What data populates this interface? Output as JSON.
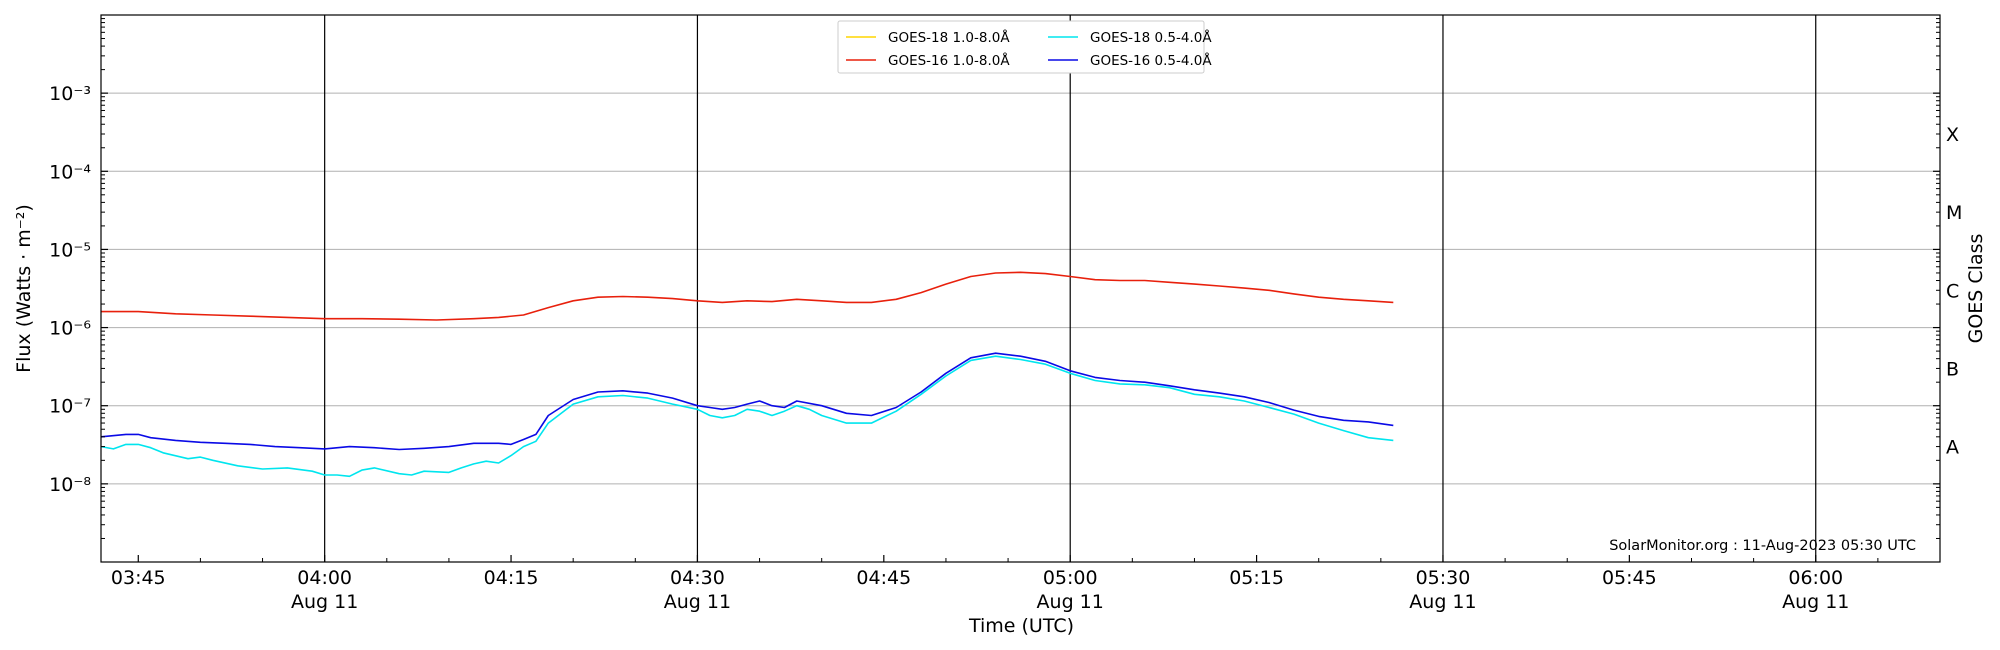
{
  "chart_data": {
    "type": "line",
    "ylabel": "Flux (Watts · m⁻²)",
    "y2label": "GOES Class",
    "xlabel": "Time (UTC)",
    "yscale": "log",
    "ylim": [
      1e-09,
      0.01
    ],
    "xlim": [
      "03:42",
      "06:10"
    ],
    "grid": "horizontal at decades",
    "legend_position": "top-center",
    "footer": "SolarMonitor.org : 11-Aug-2023 05:30 UTC",
    "y_ticks": [
      {
        "value": 1e-08,
        "label": "10⁻⁸"
      },
      {
        "value": 1e-07,
        "label": "10⁻⁷"
      },
      {
        "value": 1e-06,
        "label": "10⁻⁶"
      },
      {
        "value": 1e-05,
        "label": "10⁻⁵"
      },
      {
        "value": 0.0001,
        "label": "10⁻⁴"
      },
      {
        "value": 0.001,
        "label": "10⁻³"
      }
    ],
    "class_labels": [
      {
        "value": 3e-08,
        "label": "A"
      },
      {
        "value": 3e-07,
        "label": "B"
      },
      {
        "value": 3e-06,
        "label": "C"
      },
      {
        "value": 3e-05,
        "label": "M"
      },
      {
        "value": 0.0003,
        "label": "X"
      }
    ],
    "x_ticks": [
      {
        "time": "03:45",
        "label": "03:45",
        "sublabel": ""
      },
      {
        "time": "04:00",
        "label": "04:00",
        "sublabel": "Aug 11",
        "major": true
      },
      {
        "time": "04:15",
        "label": "04:15",
        "sublabel": ""
      },
      {
        "time": "04:30",
        "label": "04:30",
        "sublabel": "Aug 11",
        "major": true
      },
      {
        "time": "04:45",
        "label": "04:45",
        "sublabel": ""
      },
      {
        "time": "05:00",
        "label": "05:00",
        "sublabel": "Aug 11",
        "major": true
      },
      {
        "time": "05:15",
        "label": "05:15",
        "sublabel": ""
      },
      {
        "time": "05:30",
        "label": "05:30",
        "sublabel": "Aug 11",
        "major": true
      },
      {
        "time": "05:45",
        "label": "05:45",
        "sublabel": ""
      },
      {
        "time": "06:00",
        "label": "06:00",
        "sublabel": "Aug 11",
        "major": true
      }
    ],
    "series": [
      {
        "name": "GOES-18 1.0-8.0Å",
        "color": "#ffd500",
        "x": [],
        "y": []
      },
      {
        "name": "GOES-16 1.0-8.0Å",
        "color": "#e8200c",
        "x": [
          "03:42",
          "03:45",
          "03:48",
          "03:51",
          "03:54",
          "03:57",
          "04:00",
          "04:03",
          "04:06",
          "04:09",
          "04:12",
          "04:14",
          "04:16",
          "04:18",
          "04:20",
          "04:22",
          "04:24",
          "04:26",
          "04:28",
          "04:30",
          "04:32",
          "04:34",
          "04:36",
          "04:38",
          "04:40",
          "04:42",
          "04:44",
          "04:46",
          "04:48",
          "04:50",
          "04:52",
          "04:54",
          "04:56",
          "04:58",
          "05:00",
          "05:02",
          "05:04",
          "05:06",
          "05:08",
          "05:10",
          "05:12",
          "05:14",
          "05:16",
          "05:18",
          "05:20",
          "05:22",
          "05:24",
          "05:26"
        ],
        "y": [
          1.6e-06,
          1.6e-06,
          1.5e-06,
          1.45e-06,
          1.4e-06,
          1.35e-06,
          1.3e-06,
          1.3e-06,
          1.28e-06,
          1.25e-06,
          1.3e-06,
          1.35e-06,
          1.45e-06,
          1.8e-06,
          2.2e-06,
          2.45e-06,
          2.5e-06,
          2.45e-06,
          2.35e-06,
          2.2e-06,
          2.1e-06,
          2.2e-06,
          2.15e-06,
          2.3e-06,
          2.2e-06,
          2.1e-06,
          2.1e-06,
          2.3e-06,
          2.8e-06,
          3.6e-06,
          4.5e-06,
          5e-06,
          5.1e-06,
          4.9e-06,
          4.5e-06,
          4.1e-06,
          4e-06,
          4e-06,
          3.8e-06,
          3.6e-06,
          3.4e-06,
          3.2e-06,
          3e-06,
          2.7e-06,
          2.45e-06,
          2.3e-06,
          2.2e-06,
          2.1e-06
        ]
      },
      {
        "name": "GOES-18 0.5-4.0Å",
        "color": "#00e5ee",
        "x": [
          "03:42",
          "03:43",
          "03:44",
          "03:45",
          "03:46",
          "03:47",
          "03:49",
          "03:50",
          "03:51",
          "03:53",
          "03:55",
          "03:57",
          "03:59",
          "04:00",
          "04:01",
          "04:02",
          "04:03",
          "04:04",
          "04:06",
          "04:07",
          "04:08",
          "04:10",
          "04:11",
          "04:12",
          "04:13",
          "04:14",
          "04:15",
          "04:16",
          "04:17",
          "04:18",
          "04:20",
          "04:22",
          "04:24",
          "04:26",
          "04:28",
          "04:30",
          "04:31",
          "04:32",
          "04:33",
          "04:34",
          "04:35",
          "04:36",
          "04:37",
          "04:38",
          "04:39",
          "04:40",
          "04:42",
          "04:44",
          "04:46",
          "04:48",
          "04:50",
          "04:52",
          "04:54",
          "04:56",
          "04:58",
          "05:00",
          "05:02",
          "05:04",
          "05:06",
          "05:08",
          "05:10",
          "05:12",
          "05:14",
          "05:16",
          "05:18",
          "05:20",
          "05:22",
          "05:24",
          "05:26"
        ],
        "y": [
          3e-08,
          2.8e-08,
          3.2e-08,
          3.2e-08,
          2.9e-08,
          2.5e-08,
          2.1e-08,
          2.2e-08,
          2e-08,
          1.7e-08,
          1.55e-08,
          1.6e-08,
          1.45e-08,
          1.3e-08,
          1.3e-08,
          1.25e-08,
          1.5e-08,
          1.6e-08,
          1.35e-08,
          1.3e-08,
          1.45e-08,
          1.4e-08,
          1.6e-08,
          1.8e-08,
          1.95e-08,
          1.85e-08,
          2.3e-08,
          3e-08,
          3.5e-08,
          6e-08,
          1.05e-07,
          1.3e-07,
          1.35e-07,
          1.25e-07,
          1.05e-07,
          9e-08,
          7.5e-08,
          7e-08,
          7.5e-08,
          9e-08,
          8.5e-08,
          7.5e-08,
          8.5e-08,
          1e-07,
          9e-08,
          7.5e-08,
          6e-08,
          6e-08,
          8.5e-08,
          1.4e-07,
          2.4e-07,
          3.8e-07,
          4.3e-07,
          3.9e-07,
          3.4e-07,
          2.6e-07,
          2.1e-07,
          1.9e-07,
          1.85e-07,
          1.7e-07,
          1.4e-07,
          1.3e-07,
          1.15e-07,
          9.5e-08,
          7.8e-08,
          6e-08,
          4.8e-08,
          3.9e-08,
          3.6e-08
        ]
      },
      {
        "name": "GOES-16 0.5-4.0Å",
        "color": "#0a0ae6",
        "x": [
          "03:42",
          "03:44",
          "03:45",
          "03:46",
          "03:48",
          "03:50",
          "03:52",
          "03:54",
          "03:56",
          "03:58",
          "04:00",
          "04:02",
          "04:04",
          "04:06",
          "04:08",
          "04:10",
          "04:12",
          "04:14",
          "04:15",
          "04:16",
          "04:17",
          "04:18",
          "04:20",
          "04:22",
          "04:24",
          "04:26",
          "04:28",
          "04:30",
          "04:31",
          "04:32",
          "04:33",
          "04:34",
          "04:35",
          "04:36",
          "04:37",
          "04:38",
          "04:40",
          "04:42",
          "04:44",
          "04:46",
          "04:48",
          "04:50",
          "04:52",
          "04:54",
          "04:56",
          "04:58",
          "05:00",
          "05:02",
          "05:04",
          "05:06",
          "05:08",
          "05:10",
          "05:12",
          "05:14",
          "05:16",
          "05:18",
          "05:20",
          "05:22",
          "05:24",
          "05:26"
        ],
        "y": [
          4e-08,
          4.3e-08,
          4.3e-08,
          3.9e-08,
          3.6e-08,
          3.4e-08,
          3.3e-08,
          3.2e-08,
          3e-08,
          2.9e-08,
          2.8e-08,
          3e-08,
          2.9e-08,
          2.75e-08,
          2.85e-08,
          3e-08,
          3.3e-08,
          3.3e-08,
          3.2e-08,
          3.7e-08,
          4.3e-08,
          7.5e-08,
          1.2e-07,
          1.5e-07,
          1.55e-07,
          1.45e-07,
          1.25e-07,
          1e-07,
          9.5e-08,
          9e-08,
          9.5e-08,
          1.05e-07,
          1.15e-07,
          1e-07,
          9.5e-08,
          1.15e-07,
          1e-07,
          8e-08,
          7.5e-08,
          9.5e-08,
          1.5e-07,
          2.6e-07,
          4.1e-07,
          4.7e-07,
          4.3e-07,
          3.7e-07,
          2.8e-07,
          2.3e-07,
          2.1e-07,
          2e-07,
          1.8e-07,
          1.6e-07,
          1.45e-07,
          1.3e-07,
          1.1e-07,
          8.8e-08,
          7.3e-08,
          6.5e-08,
          6.2e-08,
          5.6e-08
        ]
      }
    ]
  }
}
